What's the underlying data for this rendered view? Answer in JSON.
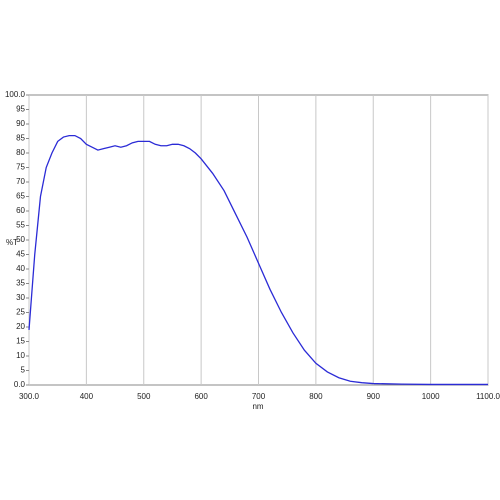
{
  "chart_data": {
    "type": "line",
    "x_label": "nm",
    "y_label": "%T",
    "x": [
      300,
      310,
      320,
      330,
      340,
      350,
      360,
      370,
      380,
      390,
      400,
      410,
      420,
      430,
      440,
      450,
      460,
      470,
      480,
      490,
      500,
      510,
      520,
      530,
      540,
      550,
      560,
      570,
      580,
      590,
      600,
      620,
      640,
      660,
      680,
      700,
      720,
      740,
      760,
      780,
      800,
      820,
      840,
      860,
      880,
      900,
      950,
      1000,
      1100
    ],
    "series": [
      {
        "color": "#2b2bd6",
        "values": [
          19,
          45,
          65,
          75,
          80,
          84,
          85.5,
          86,
          86,
          85,
          83,
          82,
          81,
          81.5,
          82,
          82.5,
          82,
          82.5,
          83.5,
          84,
          84,
          84,
          83,
          82.5,
          82.5,
          83,
          83,
          82.5,
          81.5,
          80,
          78,
          73,
          67,
          59,
          51,
          42,
          33,
          25,
          18,
          12,
          7.5,
          4.5,
          2.5,
          1.3,
          0.8,
          0.5,
          0.3,
          0.2,
          0.2
        ]
      }
    ],
    "xlim": [
      300,
      1100
    ],
    "xticks": [
      {
        "value": 300,
        "label": "300.0"
      },
      400,
      500,
      600,
      700,
      800,
      900,
      1000,
      {
        "value": 1100,
        "label": "1100.0"
      }
    ],
    "ylim": [
      0,
      100
    ],
    "yticks": [
      {
        "value": 0,
        "label": "0.0"
      },
      5,
      10,
      15,
      20,
      25,
      30,
      35,
      40,
      45,
      50,
      55,
      60,
      65,
      70,
      75,
      80,
      85,
      90,
      95,
      {
        "value": 100,
        "label": "100.0"
      }
    ],
    "grid": true
  }
}
